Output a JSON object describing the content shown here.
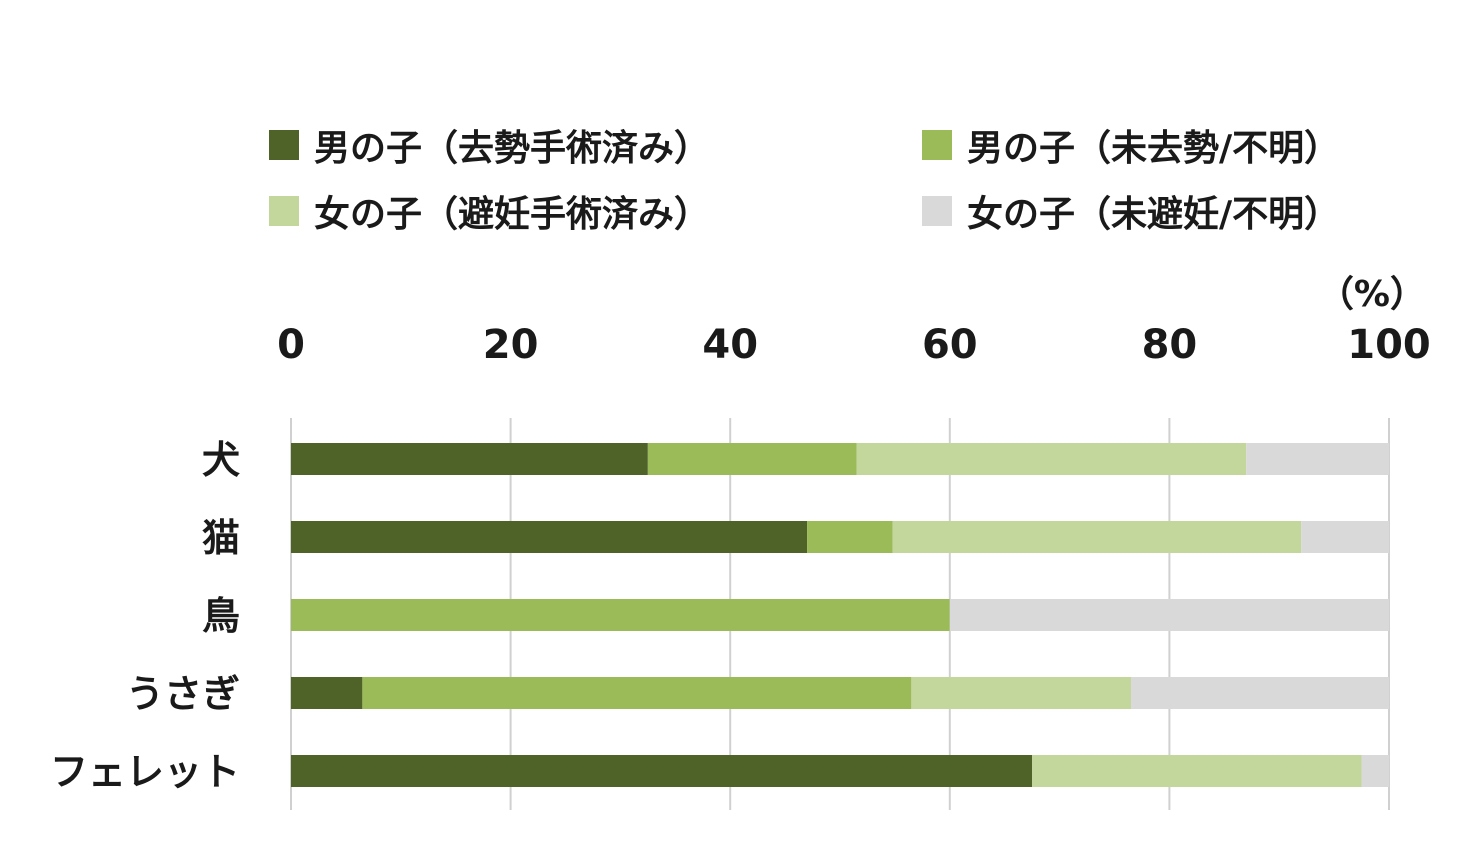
{
  "chart_data": {
    "type": "bar",
    "orientation": "horizontal",
    "stacked": true,
    "unit_label": "（%）",
    "xlim": [
      0,
      100
    ],
    "xticks": [
      "0",
      "20",
      "40",
      "60",
      "80",
      "100"
    ],
    "categories": [
      "犬",
      "猫",
      "鳥",
      "うさぎ",
      "フェレット"
    ],
    "series": [
      {
        "name": "男の子（去勢手術済み）",
        "color": "#4f6228",
        "values": [
          32.5,
          47,
          0,
          6.5,
          67.5
        ]
      },
      {
        "name": "男の子（未去勢/不明）",
        "color": "#9bbb59",
        "values": [
          19,
          7.8,
          60,
          50,
          0
        ]
      },
      {
        "name": "女の子（避妊手術済み）",
        "color": "#c3d69b",
        "values": [
          35.5,
          37.2,
          0,
          20,
          30
        ]
      },
      {
        "name": "女の子（未避妊/不明）",
        "color": "#d9d9d9",
        "values": [
          13,
          8,
          40,
          23.5,
          2.5
        ]
      }
    ],
    "grid": true,
    "legend_position": "top"
  }
}
